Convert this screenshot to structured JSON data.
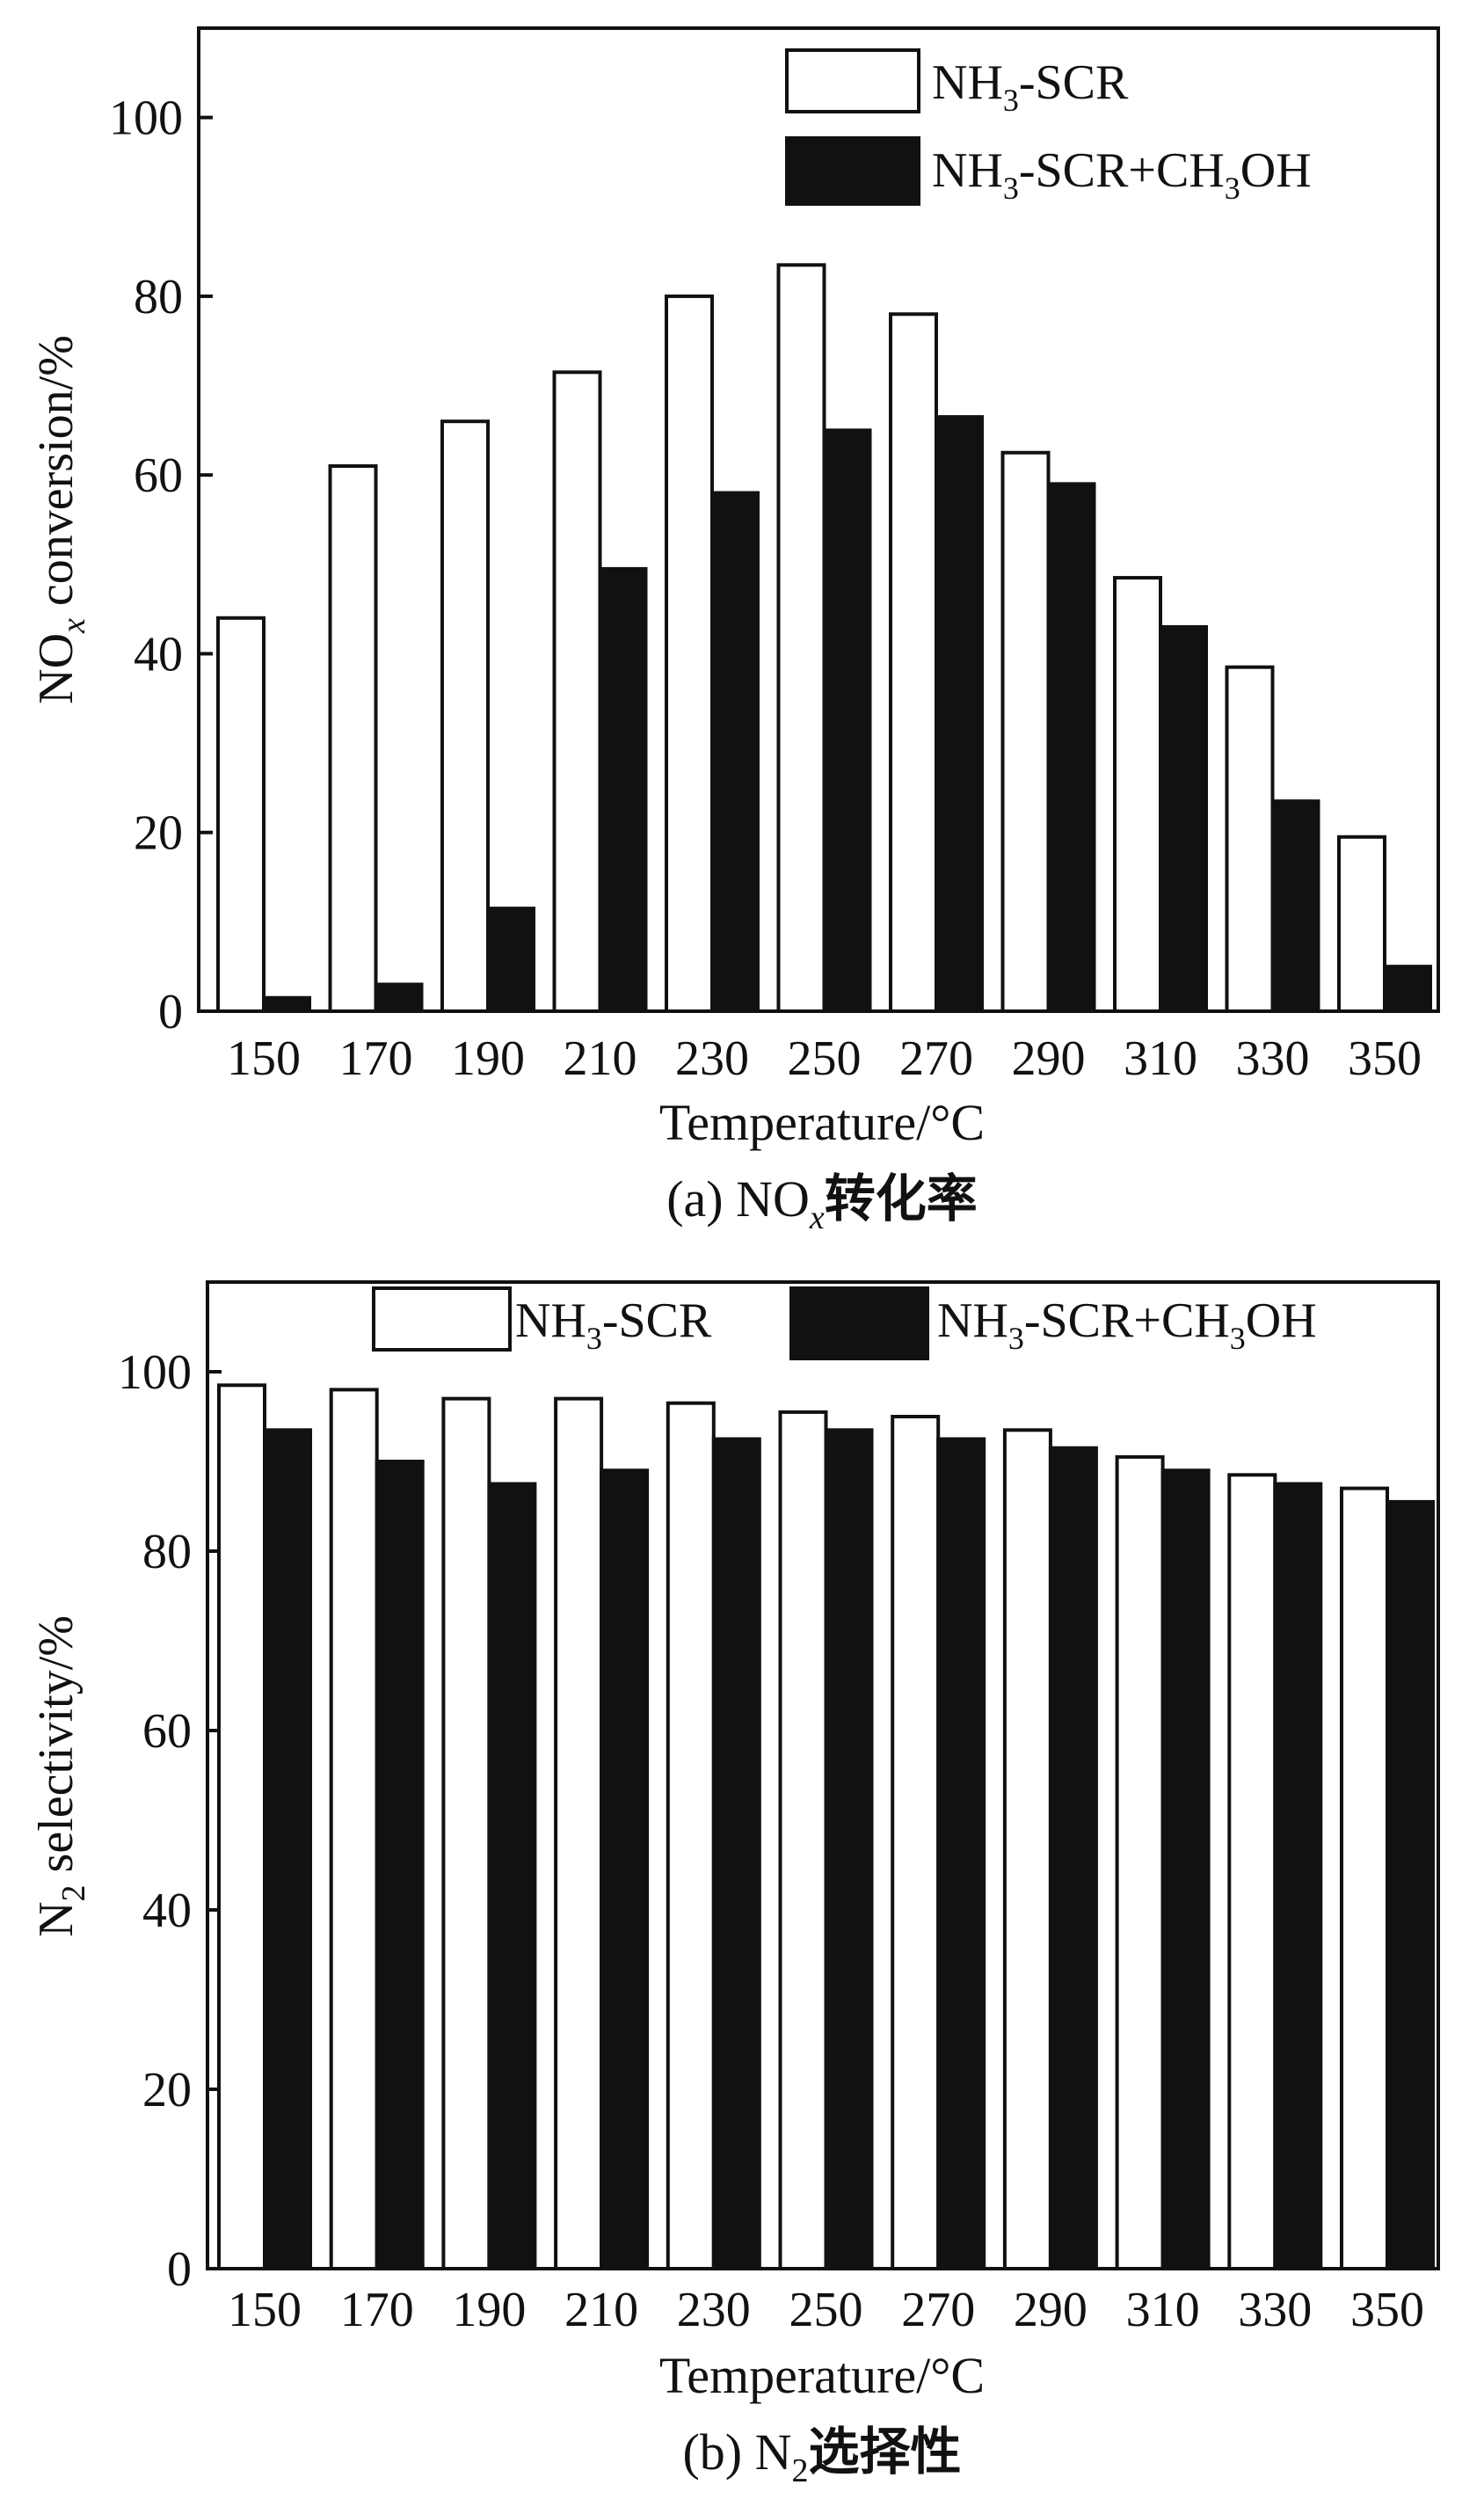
{
  "chart_data": [
    {
      "type": "bar",
      "panel": "a",
      "caption": {
        "prefix": "(a) NO",
        "sub": "x",
        "suffix": "转化率"
      },
      "ylabel": {
        "main": "NO",
        "sub": "x",
        "rest": " conversion/%"
      },
      "xlabel": "Temperature/°C",
      "categories": [
        "150",
        "170",
        "190",
        "210",
        "230",
        "250",
        "270",
        "290",
        "310",
        "330",
        "350"
      ],
      "yticks": [
        "0",
        "20",
        "40",
        "60",
        "80",
        "100"
      ],
      "ylim": [
        0,
        110
      ],
      "legend_position": "top-right",
      "series": [
        {
          "name": "NH3-SCR",
          "label": {
            "a": "NH",
            "b": "3",
            "c": "-SCR"
          },
          "fill": "#ffffff",
          "values": [
            44,
            61,
            66,
            71.5,
            80,
            83.5,
            78,
            62.5,
            48.5,
            38.5,
            19.5
          ]
        },
        {
          "name": "NH3-SCR+CH3OH",
          "label": {
            "a": "NH",
            "b": "3",
            "c": "-SCR+CH",
            "d": "3",
            "e": "OH"
          },
          "fill": "#111111",
          "values": [
            1.5,
            3,
            11.5,
            49.5,
            58,
            65,
            66.5,
            59,
            43,
            23.5,
            5
          ]
        }
      ]
    },
    {
      "type": "bar",
      "panel": "b",
      "caption": {
        "prefix": "(b) N",
        "sub": "2",
        "suffix": "选择性"
      },
      "ylabel": {
        "main": "N",
        "sub": "2",
        "rest": " selectivity/%"
      },
      "xlabel": "Temperature/°C",
      "categories": [
        "150",
        "170",
        "190",
        "210",
        "230",
        "250",
        "270",
        "290",
        "310",
        "330",
        "350"
      ],
      "yticks": [
        "0",
        "20",
        "40",
        "60",
        "80",
        "100"
      ],
      "ylim": [
        0,
        110
      ],
      "legend_position": "top",
      "series": [
        {
          "name": "NH3-SCR",
          "label": {
            "a": "NH",
            "b": "3",
            "c": "-SCR"
          },
          "fill": "#ffffff",
          "values": [
            98.5,
            98,
            97,
            97,
            96.5,
            95.5,
            95,
            93.5,
            90.5,
            88.5,
            87
          ]
        },
        {
          "name": "NH3-SCR+CH3OH",
          "label": {
            "a": "NH",
            "b": "3",
            "c": "-SCR+CH",
            "d": "3",
            "e": "OH"
          },
          "fill": "#111111",
          "values": [
            93.5,
            90,
            87.5,
            89,
            92.5,
            93.5,
            92.5,
            91.5,
            89,
            87.5,
            85.5
          ]
        }
      ]
    }
  ]
}
